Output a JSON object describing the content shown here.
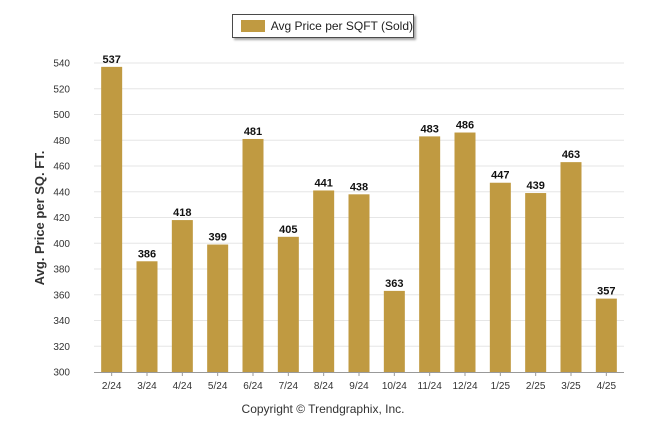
{
  "legend": {
    "label": "Avg Price per SQFT (Sold)"
  },
  "footer": {
    "copyright": "Copyright © Trendgraphix, Inc."
  },
  "colors": {
    "bar": "#c09a41",
    "grid": "#e6e6e6",
    "axis": "#999999"
  },
  "chart_data": {
    "type": "bar",
    "title": "",
    "xlabel": "",
    "ylabel": "Avg. Price per SQ. FT.",
    "categories": [
      "2/24",
      "3/24",
      "4/24",
      "5/24",
      "6/24",
      "7/24",
      "8/24",
      "9/24",
      "10/24",
      "11/24",
      "12/24",
      "1/25",
      "2/25",
      "3/25",
      "4/25"
    ],
    "series": [
      {
        "name": "Avg Price per SQFT (Sold)",
        "values": [
          537,
          386,
          418,
          399,
          481,
          405,
          441,
          438,
          363,
          483,
          486,
          447,
          439,
          463,
          357
        ]
      }
    ],
    "ylim": [
      300,
      540
    ],
    "yticks": [
      300,
      320,
      340,
      360,
      380,
      400,
      420,
      440,
      460,
      480,
      500,
      520,
      540
    ],
    "grid": true,
    "legend_position": "top-center",
    "data_labels": true
  }
}
